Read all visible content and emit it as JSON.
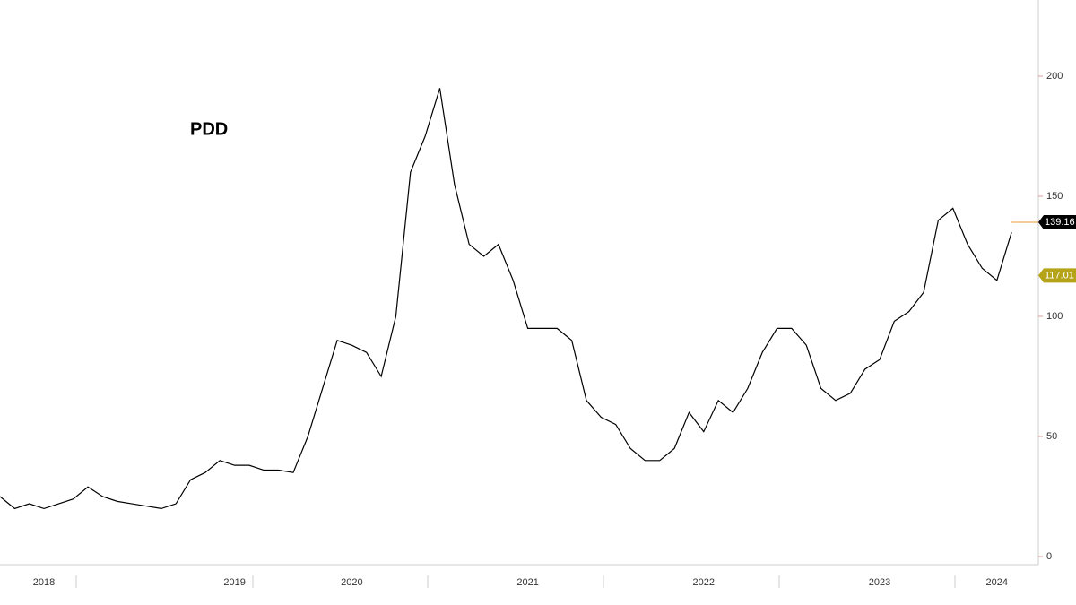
{
  "chart_data": {
    "type": "line",
    "title": "PDD",
    "categories": [
      null,
      null,
      null,
      "2018",
      null,
      null,
      null,
      null,
      null,
      null,
      null,
      null,
      null,
      null,
      null,
      null,
      "2019",
      null,
      null,
      null,
      null,
      null,
      null,
      null,
      "2020",
      null,
      null,
      null,
      null,
      null,
      null,
      null,
      null,
      null,
      null,
      null,
      "2021",
      null,
      null,
      null,
      null,
      null,
      null,
      null,
      null,
      null,
      null,
      null,
      "2022",
      null,
      null,
      null,
      null,
      null,
      null,
      null,
      null,
      null,
      null,
      null,
      "2023",
      null,
      null,
      null,
      null,
      null,
      null,
      null,
      "2024",
      null
    ],
    "series": [
      {
        "name": "PDD",
        "color": "#000000",
        "values": [
          25,
          20,
          22,
          20,
          22,
          24,
          29,
          25,
          23,
          22,
          21,
          20,
          22,
          32,
          35,
          40,
          38,
          38,
          36,
          36,
          35,
          50,
          70,
          90,
          88,
          85,
          75,
          100,
          160,
          175,
          195,
          155,
          130,
          125,
          130,
          115,
          95,
          95,
          95,
          90,
          65,
          58,
          55,
          45,
          40,
          40,
          45,
          60,
          52,
          65,
          60,
          70,
          85,
          95,
          95,
          88,
          70,
          65,
          68,
          78,
          82,
          98,
          102,
          110,
          140,
          145,
          130,
          120,
          115,
          135
        ]
      }
    ],
    "ylim": [
      0,
      230
    ],
    "yticks": [
      0,
      50,
      100,
      150,
      200
    ],
    "grid": false,
    "markers": [
      {
        "value": 139.16,
        "color": "#000000"
      },
      {
        "value": 117.01,
        "color": "#b5a318"
      }
    ]
  }
}
